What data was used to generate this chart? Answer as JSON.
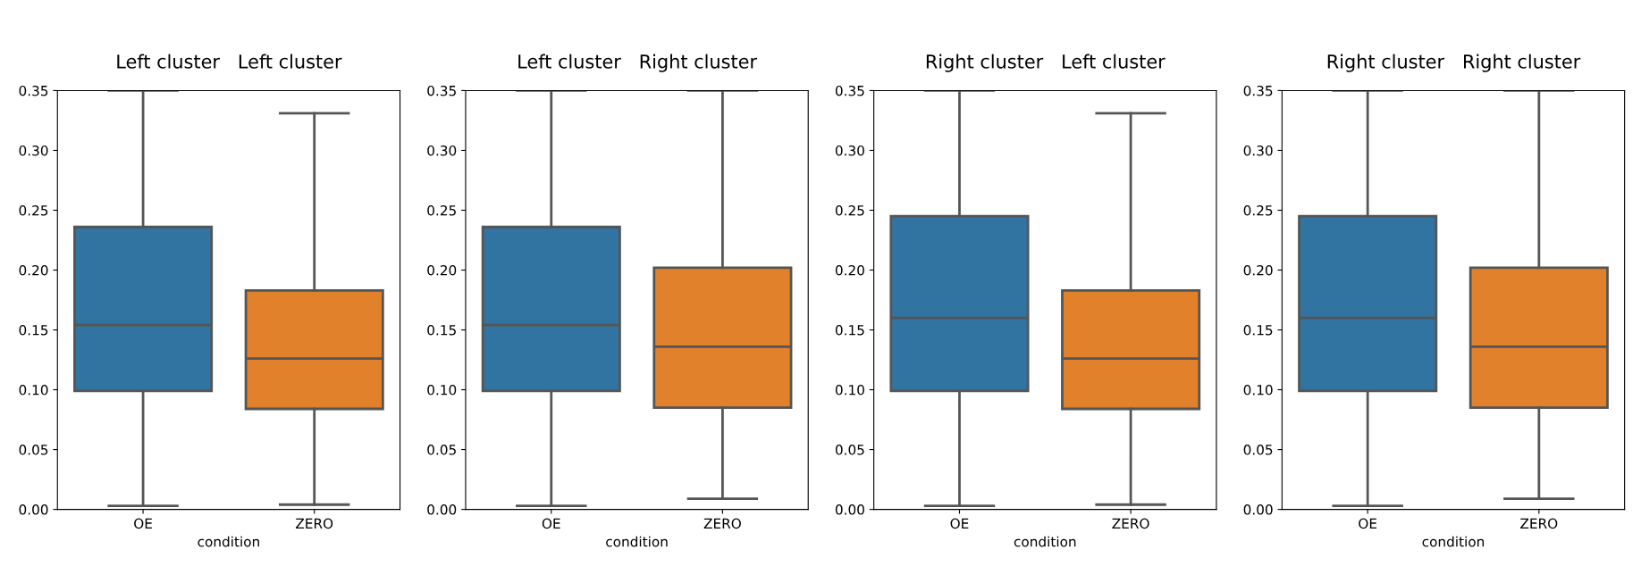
{
  "chart_data": [
    {
      "type": "box",
      "title": "Left cluster   Left cluster",
      "xlabel": "condition",
      "categories": [
        "OE",
        "ZERO"
      ],
      "colors": [
        "#3274a1",
        "#e1812c"
      ],
      "ylim": [
        0,
        0.35
      ],
      "yticks": [
        {
          "value": 0,
          "label": "0.00"
        },
        {
          "value": 0.05,
          "label": "0.05"
        },
        {
          "value": 0.1,
          "label": "0.10"
        },
        {
          "value": 0.15,
          "label": "0.15"
        },
        {
          "value": 0.2,
          "label": "0.20"
        },
        {
          "value": 0.25,
          "label": "0.25"
        },
        {
          "value": 0.3,
          "label": "0.30"
        },
        {
          "value": 0.35,
          "label": "0.35"
        }
      ],
      "grid": false,
      "legend": false,
      "boxes": [
        {
          "low": 0.003,
          "q1": 0.099,
          "median": 0.154,
          "q3": 0.236,
          "high": null
        },
        {
          "low": 0.004,
          "q1": 0.084,
          "median": 0.126,
          "q3": 0.183,
          "high": 0.331
        }
      ]
    },
    {
      "type": "box",
      "title": "Left cluster   Right cluster",
      "xlabel": "condition",
      "categories": [
        "OE",
        "ZERO"
      ],
      "colors": [
        "#3274a1",
        "#e1812c"
      ],
      "ylim": [
        0,
        0.35
      ],
      "yticks": [
        {
          "value": 0,
          "label": "0.00"
        },
        {
          "value": 0.05,
          "label": "0.05"
        },
        {
          "value": 0.1,
          "label": "0.10"
        },
        {
          "value": 0.15,
          "label": "0.15"
        },
        {
          "value": 0.2,
          "label": "0.20"
        },
        {
          "value": 0.25,
          "label": "0.25"
        },
        {
          "value": 0.3,
          "label": "0.30"
        },
        {
          "value": 0.35,
          "label": "0.35"
        }
      ],
      "grid": false,
      "legend": false,
      "boxes": [
        {
          "low": 0.003,
          "q1": 0.099,
          "median": 0.154,
          "q3": 0.236,
          "high": null
        },
        {
          "low": 0.009,
          "q1": 0.085,
          "median": 0.136,
          "q3": 0.202,
          "high": null
        }
      ]
    },
    {
      "type": "box",
      "title": "Right cluster   Left cluster",
      "xlabel": "condition",
      "categories": [
        "OE",
        "ZERO"
      ],
      "colors": [
        "#3274a1",
        "#e1812c"
      ],
      "ylim": [
        0,
        0.35
      ],
      "yticks": [
        {
          "value": 0,
          "label": "0.00"
        },
        {
          "value": 0.05,
          "label": "0.05"
        },
        {
          "value": 0.1,
          "label": "0.10"
        },
        {
          "value": 0.15,
          "label": "0.15"
        },
        {
          "value": 0.2,
          "label": "0.20"
        },
        {
          "value": 0.25,
          "label": "0.25"
        },
        {
          "value": 0.3,
          "label": "0.30"
        },
        {
          "value": 0.35,
          "label": "0.35"
        }
      ],
      "grid": false,
      "legend": false,
      "boxes": [
        {
          "low": 0.003,
          "q1": 0.099,
          "median": 0.16,
          "q3": 0.245,
          "high": null
        },
        {
          "low": 0.004,
          "q1": 0.084,
          "median": 0.126,
          "q3": 0.183,
          "high": 0.331
        }
      ]
    },
    {
      "type": "box",
      "title": "Right cluster   Right cluster",
      "xlabel": "condition",
      "categories": [
        "OE",
        "ZERO"
      ],
      "colors": [
        "#3274a1",
        "#e1812c"
      ],
      "ylim": [
        0,
        0.35
      ],
      "yticks": [
        {
          "value": 0,
          "label": "0.00"
        },
        {
          "value": 0.05,
          "label": "0.05"
        },
        {
          "value": 0.1,
          "label": "0.10"
        },
        {
          "value": 0.15,
          "label": "0.15"
        },
        {
          "value": 0.2,
          "label": "0.20"
        },
        {
          "value": 0.25,
          "label": "0.25"
        },
        {
          "value": 0.3,
          "label": "0.30"
        },
        {
          "value": 0.35,
          "label": "0.35"
        }
      ],
      "grid": false,
      "legend": false,
      "boxes": [
        {
          "low": 0.003,
          "q1": 0.099,
          "median": 0.16,
          "q3": 0.245,
          "high": null
        },
        {
          "low": 0.009,
          "q1": 0.085,
          "median": 0.136,
          "q3": 0.202,
          "high": null
        }
      ]
    }
  ]
}
